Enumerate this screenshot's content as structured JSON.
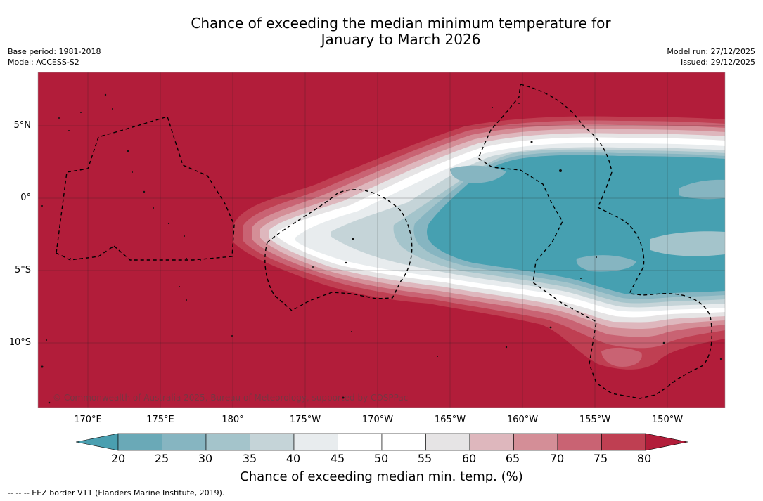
{
  "title_line1": "Chance of exceeding the median minimum temperature for",
  "title_line2": "January to March 2026",
  "base_period": "Base period: 1981-2018",
  "model": "Model: ACCESS-S2",
  "model_run": "Model run: 27/12/2025",
  "issued": "Issued: 29/12/2025",
  "lat_labels": [
    "5°N",
    "0°",
    "5°S",
    "10°S"
  ],
  "lon_labels": [
    "170°E",
    "175°E",
    "180°",
    "175°W",
    "170°W",
    "165°W",
    "160°W",
    "155°W",
    "150°W"
  ],
  "copyright": "© Commonwealth of Australia 2025, Bureau of Meteorology, supported by COSPPac",
  "colorbar": {
    "ticks": [
      "20",
      "25",
      "30",
      "35",
      "40",
      "45",
      "50",
      "55",
      "60",
      "65",
      "70",
      "75",
      "80"
    ],
    "title": "Chance of exceeding median min. temp. (%)",
    "colors": [
      "#6aa9b7",
      "#86b5c1",
      "#a4c4cb",
      "#c5d4d8",
      "#e8ecee",
      "#ffffff",
      "#ffffff",
      "#e6e4e5",
      "#deb7bd",
      "#d48e97",
      "#c96373",
      "#bf3f52"
    ],
    "low_color": "#4a9fb0",
    "high_color": "#b21d3a"
  },
  "footer": "--  --  -- EEZ border V11 (Flanders Marine Institute, 2019).",
  "colors": {
    "background_high": "#b21d3a",
    "cool_core": "#46a0b1"
  }
}
